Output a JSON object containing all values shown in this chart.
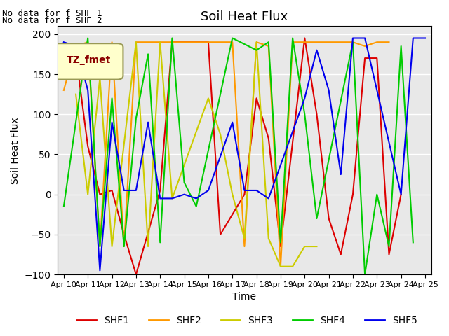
{
  "title": "Soil Heat Flux",
  "xlabel": "Time",
  "ylabel": "Soil Heat Flux",
  "ylim": [
    -100,
    210
  ],
  "yticks": [
    -100,
    -50,
    0,
    50,
    100,
    150,
    200
  ],
  "annotation_line1": "No data for f_SHF_1",
  "annotation_line2": "No data for f_SHF_2",
  "legend_label": "TZ_fmet",
  "legend_colors": {
    "SHF1": "#dd0000",
    "SHF2": "#ff9900",
    "SHF3": "#cccc00",
    "SHF4": "#00cc00",
    "SHF5": "#0000ee"
  },
  "x_tick_positions": [
    0,
    2,
    4,
    6,
    8,
    10,
    12,
    14,
    16,
    18,
    20,
    22,
    24,
    26,
    28,
    30
  ],
  "x_tick_labels": [
    "Apr 10",
    "Apr 11",
    "Apr 12",
    "Apr 13",
    "Apr 14",
    "Apr 15",
    "Apr 16",
    "Apr 17",
    "Apr 18",
    "Apr 19",
    "Apr 20",
    "Apr 21",
    "Apr 22",
    "Apr 23",
    "Apr 24",
    "Apr 25"
  ],
  "SHF1_x": [
    1,
    2,
    3,
    4,
    5,
    6,
    8,
    9,
    12,
    13,
    15,
    16,
    17,
    18,
    20,
    21,
    22,
    23,
    24,
    25,
    26,
    27,
    28
  ],
  "SHF1_y": [
    175,
    60,
    0,
    5,
    -50,
    -100,
    5,
    190,
    190,
    -50,
    0,
    120,
    70,
    -65,
    195,
    100,
    -30,
    -75,
    0,
    170,
    170,
    -75,
    0
  ],
  "SHF2_x": [
    0,
    1,
    2,
    3,
    4,
    5,
    6,
    7,
    8,
    9,
    10,
    11,
    14,
    15,
    16,
    17,
    18,
    19,
    24,
    25,
    26,
    27
  ],
  "SHF2_y": [
    130,
    185,
    190,
    -65,
    190,
    -65,
    190,
    190,
    190,
    190,
    190,
    190,
    190,
    -65,
    190,
    185,
    -90,
    190,
    190,
    185,
    190,
    190
  ],
  "SHF3_x": [
    1,
    2,
    3,
    4,
    6,
    7,
    8,
    9,
    12,
    13,
    14,
    15,
    16,
    17,
    18,
    19,
    20,
    21
  ],
  "SHF3_y": [
    125,
    0,
    145,
    -65,
    190,
    -65,
    190,
    -5,
    120,
    75,
    0,
    -55,
    190,
    -55,
    -90,
    -90,
    -65,
    -65
  ],
  "SHF4_x": [
    0,
    2,
    3,
    4,
    5,
    6,
    7,
    8,
    9,
    10,
    11,
    14,
    16,
    17,
    18,
    19,
    20,
    21,
    24,
    25,
    26,
    27,
    28,
    29
  ],
  "SHF4_y": [
    -15,
    195,
    -65,
    120,
    -65,
    95,
    175,
    -60,
    195,
    15,
    -15,
    195,
    180,
    190,
    -60,
    195,
    100,
    -30,
    190,
    -100,
    0,
    -65,
    185,
    -60
  ],
  "SHF5_x": [
    0,
    1,
    2,
    3,
    4,
    5,
    6,
    7,
    8,
    9,
    10,
    11,
    12,
    14,
    15,
    16,
    17,
    20,
    21,
    22,
    23,
    24,
    25,
    28,
    29,
    30
  ],
  "SHF5_y": [
    190,
    185,
    130,
    -95,
    90,
    5,
    5,
    90,
    -5,
    -5,
    0,
    -5,
    5,
    90,
    5,
    5,
    -5,
    120,
    180,
    130,
    25,
    195,
    195,
    0,
    195,
    195
  ],
  "background_color": "#e8e8e8",
  "grid_color": "white"
}
